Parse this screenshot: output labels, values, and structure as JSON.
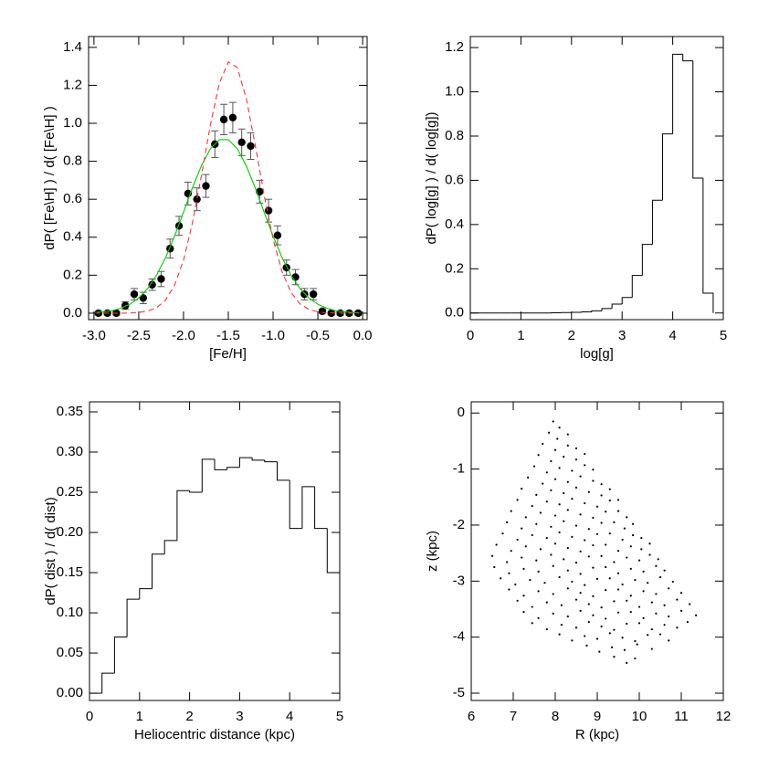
{
  "chart_data": [
    {
      "type": "errorbar",
      "x_label": "[Fe/H]",
      "y_label": "dP( [Fe\\H] ) / d( [Fe\\H] )",
      "xlim": [
        -3.06,
        0.05
      ],
      "ylim": [
        -0.034,
        1.457
      ],
      "xticks": [
        {
          "value": -3,
          "label": "-3.0"
        },
        {
          "value": -2.5,
          "label": "-2.5"
        },
        {
          "value": -2,
          "label": "-2.0"
        },
        {
          "value": -1.5,
          "label": "-1.5"
        },
        {
          "value": -1,
          "label": "-1.0"
        },
        {
          "value": -0.5,
          "label": "-0.5"
        },
        {
          "value": 0,
          "label": "0.0"
        }
      ],
      "yticks": [
        {
          "value": 0,
          "label": "0.0"
        },
        0.2,
        0.4,
        0.6,
        0.8,
        {
          "value": 1,
          "label": "1.0"
        },
        1.2,
        1.4
      ],
      "series": [
        {
          "color": "#000000",
          "error_color": "#555555",
          "x": [
            -2.95,
            -2.85,
            -2.75,
            -2.65,
            -2.55,
            -2.45,
            -2.35,
            -2.25,
            -2.15,
            -2.05,
            -1.95,
            -1.85,
            -1.75,
            -1.65,
            -1.55,
            -1.45,
            -1.35,
            -1.25,
            -1.15,
            -1.05,
            -0.95,
            -0.85,
            -0.75,
            -0.65,
            -0.55,
            -0.45,
            -0.35,
            -0.25,
            -0.15,
            -0.05
          ],
          "values": [
            0.0,
            0.0,
            0.0,
            0.04,
            0.1,
            0.08,
            0.15,
            0.18,
            0.34,
            0.46,
            0.63,
            0.6,
            0.67,
            0.89,
            1.02,
            1.03,
            0.9,
            0.88,
            0.64,
            0.54,
            0.41,
            0.24,
            0.19,
            0.1,
            0.1,
            0.01,
            0.0,
            0.0,
            0.0,
            0.0
          ],
          "errors": [
            0.01,
            0.01,
            0.01,
            0.02,
            0.03,
            0.03,
            0.03,
            0.04,
            0.05,
            0.05,
            0.06,
            0.06,
            0.06,
            0.07,
            0.08,
            0.08,
            0.07,
            0.07,
            0.06,
            0.06,
            0.05,
            0.04,
            0.04,
            0.03,
            0.03,
            0.01,
            0.01,
            0.01,
            0.01,
            0.01
          ]
        },
        {
          "color": "#00cc00",
          "dashed": false,
          "x": [
            -3.0,
            -2.9,
            -2.8,
            -2.7,
            -2.6,
            -2.5,
            -2.4,
            -2.3,
            -2.2,
            -2.1,
            -2.0,
            -1.9,
            -1.8,
            -1.7,
            -1.6,
            -1.5,
            -1.4,
            -1.3,
            -1.2,
            -1.1,
            -1.0,
            -0.9,
            -0.8,
            -0.7,
            -0.6,
            -0.5,
            -0.4,
            -0.3,
            -0.2,
            -0.1,
            0.0
          ],
          "values": [
            0.003,
            0.007,
            0.013,
            0.026,
            0.047,
            0.08,
            0.13,
            0.201,
            0.293,
            0.406,
            0.532,
            0.661,
            0.777,
            0.866,
            0.914,
            0.914,
            0.866,
            0.777,
            0.661,
            0.532,
            0.406,
            0.293,
            0.201,
            0.13,
            0.08,
            0.047,
            0.026,
            0.013,
            0.007,
            0.003,
            0.001
          ]
        },
        {
          "color": "#ff3333",
          "dashed": true,
          "x": [
            -3.0,
            -2.9,
            -2.8,
            -2.7,
            -2.6,
            -2.5,
            -2.4,
            -2.3,
            -2.2,
            -2.1,
            -2.0,
            -1.9,
            -1.8,
            -1.7,
            -1.6,
            -1.5,
            -1.4,
            -1.3,
            -1.2,
            -1.1,
            -1.0,
            -0.9,
            -0.8,
            -0.7,
            -0.6,
            -0.5,
            -0.4,
            -0.3,
            -0.2,
            -0.1,
            0.0
          ],
          "values": [
            0,
            0,
            0,
            0,
            0.001,
            0.004,
            0.011,
            0.029,
            0.069,
            0.147,
            0.279,
            0.476,
            0.726,
            0.991,
            1.211,
            1.323,
            1.294,
            1.133,
            0.887,
            0.622,
            0.39,
            0.219,
            0.11,
            0.049,
            0.02,
            0.007,
            0.002,
            0.001,
            0,
            0,
            0
          ]
        }
      ]
    },
    {
      "type": "histogram",
      "x_label": "log[g]",
      "y_label": "dP( log[g] ) / d( log[g])",
      "color": "#000000",
      "xlim": [
        0,
        5
      ],
      "ylim": [
        -0.03,
        1.25
      ],
      "xticks": [
        0,
        1,
        2,
        3,
        4,
        5
      ],
      "yticks": [
        {
          "value": 0,
          "label": "0.0"
        },
        0.2,
        0.4,
        0.6,
        0.8,
        {
          "value": 1,
          "label": "1.0"
        },
        1.2
      ],
      "bins": [
        0,
        0.2,
        0.4,
        0.6,
        0.8,
        1.0,
        1.2,
        1.4,
        1.6,
        1.8,
        2.0,
        2.2,
        2.4,
        2.6,
        2.8,
        3.0,
        3.2,
        3.4,
        3.6,
        3.8,
        4.0,
        4.2,
        4.4,
        4.6,
        4.8
      ],
      "values": [
        0,
        0,
        0,
        0,
        0,
        0,
        0,
        0,
        0.001,
        0.002,
        0.003,
        0.005,
        0.01,
        0.02,
        0.04,
        0.07,
        0.17,
        0.31,
        0.51,
        0.81,
        1.17,
        1.14,
        0.61,
        0.09
      ]
    },
    {
      "type": "histogram",
      "x_label": "Heliocentric distance (kpc)",
      "y_label": "dP( dist ) / d( dist)",
      "color": "#000000",
      "xlim": [
        0,
        5
      ],
      "ylim": [
        -0.009,
        0.3625
      ],
      "xticks": [
        0,
        1,
        2,
        3,
        4,
        5
      ],
      "yticks": [
        {
          "value": 0,
          "label": "0.00"
        },
        0.05,
        {
          "value": 0.1,
          "label": "0.10"
        },
        0.15,
        {
          "value": 0.2,
          "label": "0.20"
        },
        0.25,
        {
          "value": 0.3,
          "label": "0.30"
        },
        0.35
      ],
      "bins": [
        0,
        0.25,
        0.5,
        0.75,
        1.0,
        1.25,
        1.5,
        1.75,
        2.0,
        2.25,
        2.5,
        2.75,
        3.0,
        3.25,
        3.5,
        3.75,
        4.0,
        4.25,
        4.5,
        4.75,
        5.0
      ],
      "values": [
        0.0,
        0.025,
        0.07,
        0.117,
        0.13,
        0.173,
        0.19,
        0.252,
        0.25,
        0.291,
        0.278,
        0.281,
        0.293,
        0.29,
        0.288,
        0.265,
        0.205,
        0.257,
        0.205,
        0.15
      ]
    },
    {
      "type": "scatter",
      "x_label": "R (kpc)",
      "y_label": "z (kpc)",
      "color": "#000000",
      "xlim": [
        6,
        12
      ],
      "ylim": [
        -5.13,
        0.2
      ],
      "xticks": [
        6,
        7,
        8,
        9,
        10,
        11,
        12
      ],
      "yticks": [
        -5,
        -4,
        -3,
        -2,
        -1,
        0
      ],
      "x": [
        7.95,
        8.1,
        7.85,
        8.05,
        8.3,
        7.7,
        8.0,
        8.3,
        8.5,
        7.6,
        7.9,
        8.2,
        8.5,
        8.7,
        7.5,
        7.8,
        8.1,
        8.4,
        8.7,
        8.9,
        7.35,
        7.7,
        8.0,
        8.3,
        8.6,
        8.9,
        9.1,
        7.2,
        7.55,
        7.9,
        8.2,
        8.5,
        8.8,
        9.1,
        9.3,
        7.1,
        7.45,
        7.8,
        8.1,
        8.4,
        8.7,
        9.0,
        9.3,
        9.5,
        6.95,
        7.3,
        7.65,
        8.0,
        8.3,
        8.6,
        8.9,
        9.2,
        9.5,
        9.7,
        6.85,
        7.2,
        7.55,
        7.9,
        8.2,
        8.5,
        8.8,
        9.1,
        9.4,
        9.65,
        9.85,
        6.75,
        7.1,
        7.45,
        7.8,
        8.1,
        8.4,
        8.7,
        9.0,
        9.3,
        9.6,
        9.85,
        10.05,
        6.6,
        6.95,
        7.3,
        7.65,
        8.0,
        8.3,
        8.6,
        8.9,
        9.2,
        9.5,
        9.8,
        10.05,
        10.25,
        6.5,
        6.85,
        7.2,
        7.55,
        7.9,
        8.2,
        8.5,
        8.8,
        9.1,
        9.4,
        9.7,
        10.0,
        10.25,
        10.45,
        6.55,
        6.9,
        7.25,
        7.6,
        7.95,
        8.3,
        8.6,
        8.9,
        9.2,
        9.5,
        9.8,
        10.1,
        10.4,
        10.6,
        6.7,
        7.05,
        7.4,
        7.75,
        8.1,
        8.4,
        8.7,
        9.0,
        9.3,
        9.6,
        9.9,
        10.2,
        10.5,
        10.8,
        6.9,
        7.25,
        7.6,
        7.95,
        8.3,
        8.6,
        8.9,
        9.2,
        9.5,
        9.8,
        10.1,
        10.4,
        10.7,
        11.0,
        7.1,
        7.45,
        7.8,
        8.15,
        8.5,
        8.8,
        9.1,
        9.4,
        9.7,
        10.0,
        10.3,
        10.6,
        10.9,
        11.2,
        7.25,
        7.6,
        7.95,
        8.3,
        8.6,
        8.9,
        9.2,
        9.5,
        9.8,
        10.1,
        10.4,
        10.7,
        11.0,
        11.35,
        7.45,
        7.8,
        8.15,
        8.5,
        8.8,
        9.1,
        9.4,
        9.7,
        10.0,
        10.3,
        10.6,
        10.9,
        11.15,
        8.1,
        8.4,
        8.7,
        9.0,
        9.3,
        9.6,
        9.9,
        10.2,
        10.5,
        10.7,
        8.75,
        9.05,
        9.35,
        9.65,
        9.95,
        10.3,
        9.4,
        9.7,
        9.9
      ],
      "values": [
        -0.15,
        -0.26,
        -0.35,
        -0.46,
        -0.38,
        -0.55,
        -0.66,
        -0.58,
        -0.63,
        -0.75,
        -0.86,
        -0.78,
        -0.83,
        -0.73,
        -0.95,
        -1.06,
        -0.98,
        -1.03,
        -0.93,
        -1.01,
        -1.15,
        -1.26,
        -1.18,
        -1.23,
        -1.13,
        -1.21,
        -1.27,
        -1.35,
        -1.46,
        -1.38,
        -1.43,
        -1.33,
        -1.41,
        -1.47,
        -1.36,
        -1.55,
        -1.66,
        -1.58,
        -1.63,
        -1.53,
        -1.61,
        -1.67,
        -1.56,
        -1.55,
        -1.75,
        -1.86,
        -1.78,
        -1.83,
        -1.73,
        -1.81,
        -1.87,
        -1.76,
        -1.75,
        -1.86,
        -1.95,
        -2.06,
        -1.98,
        -2.03,
        -1.93,
        -2.01,
        -2.07,
        -1.96,
        -1.95,
        -2.06,
        -1.98,
        -2.15,
        -2.26,
        -2.18,
        -2.23,
        -2.13,
        -2.21,
        -2.27,
        -2.16,
        -2.15,
        -2.26,
        -2.18,
        -2.23,
        -2.35,
        -2.46,
        -2.38,
        -2.43,
        -2.33,
        -2.41,
        -2.47,
        -2.36,
        -2.35,
        -2.46,
        -2.38,
        -2.43,
        -2.33,
        -2.55,
        -2.66,
        -2.58,
        -2.63,
        -2.53,
        -2.61,
        -2.67,
        -2.56,
        -2.55,
        -2.66,
        -2.58,
        -2.63,
        -2.53,
        -2.61,
        -2.75,
        -2.86,
        -2.78,
        -2.83,
        -2.73,
        -2.81,
        -2.87,
        -2.76,
        -2.75,
        -2.86,
        -2.78,
        -2.83,
        -2.73,
        -2.81,
        -2.95,
        -3.06,
        -2.98,
        -3.03,
        -2.93,
        -3.01,
        -3.07,
        -2.96,
        -2.95,
        -3.06,
        -2.98,
        -3.03,
        -2.93,
        -3.01,
        -3.15,
        -3.26,
        -3.18,
        -3.23,
        -3.13,
        -3.21,
        -3.27,
        -3.16,
        -3.15,
        -3.26,
        -3.18,
        -3.23,
        -3.13,
        -3.21,
        -3.35,
        -3.46,
        -3.38,
        -3.43,
        -3.33,
        -3.41,
        -3.47,
        -3.36,
        -3.35,
        -3.46,
        -3.38,
        -3.43,
        -3.33,
        -3.41,
        -3.55,
        -3.66,
        -3.58,
        -3.63,
        -3.53,
        -3.61,
        -3.67,
        -3.56,
        -3.55,
        -3.66,
        -3.58,
        -3.63,
        -3.53,
        -3.61,
        -3.75,
        -3.86,
        -3.78,
        -3.83,
        -3.73,
        -3.81,
        -3.87,
        -3.76,
        -3.75,
        -3.86,
        -3.78,
        -3.83,
        -3.73,
        -3.95,
        -4.06,
        -3.98,
        -4.03,
        -3.93,
        -4.01,
        -4.07,
        -3.96,
        -3.95,
        -4.06,
        -4.15,
        -4.26,
        -4.18,
        -4.23,
        -4.13,
        -4.21,
        -4.35,
        -4.46,
        -4.38
      ]
    }
  ]
}
